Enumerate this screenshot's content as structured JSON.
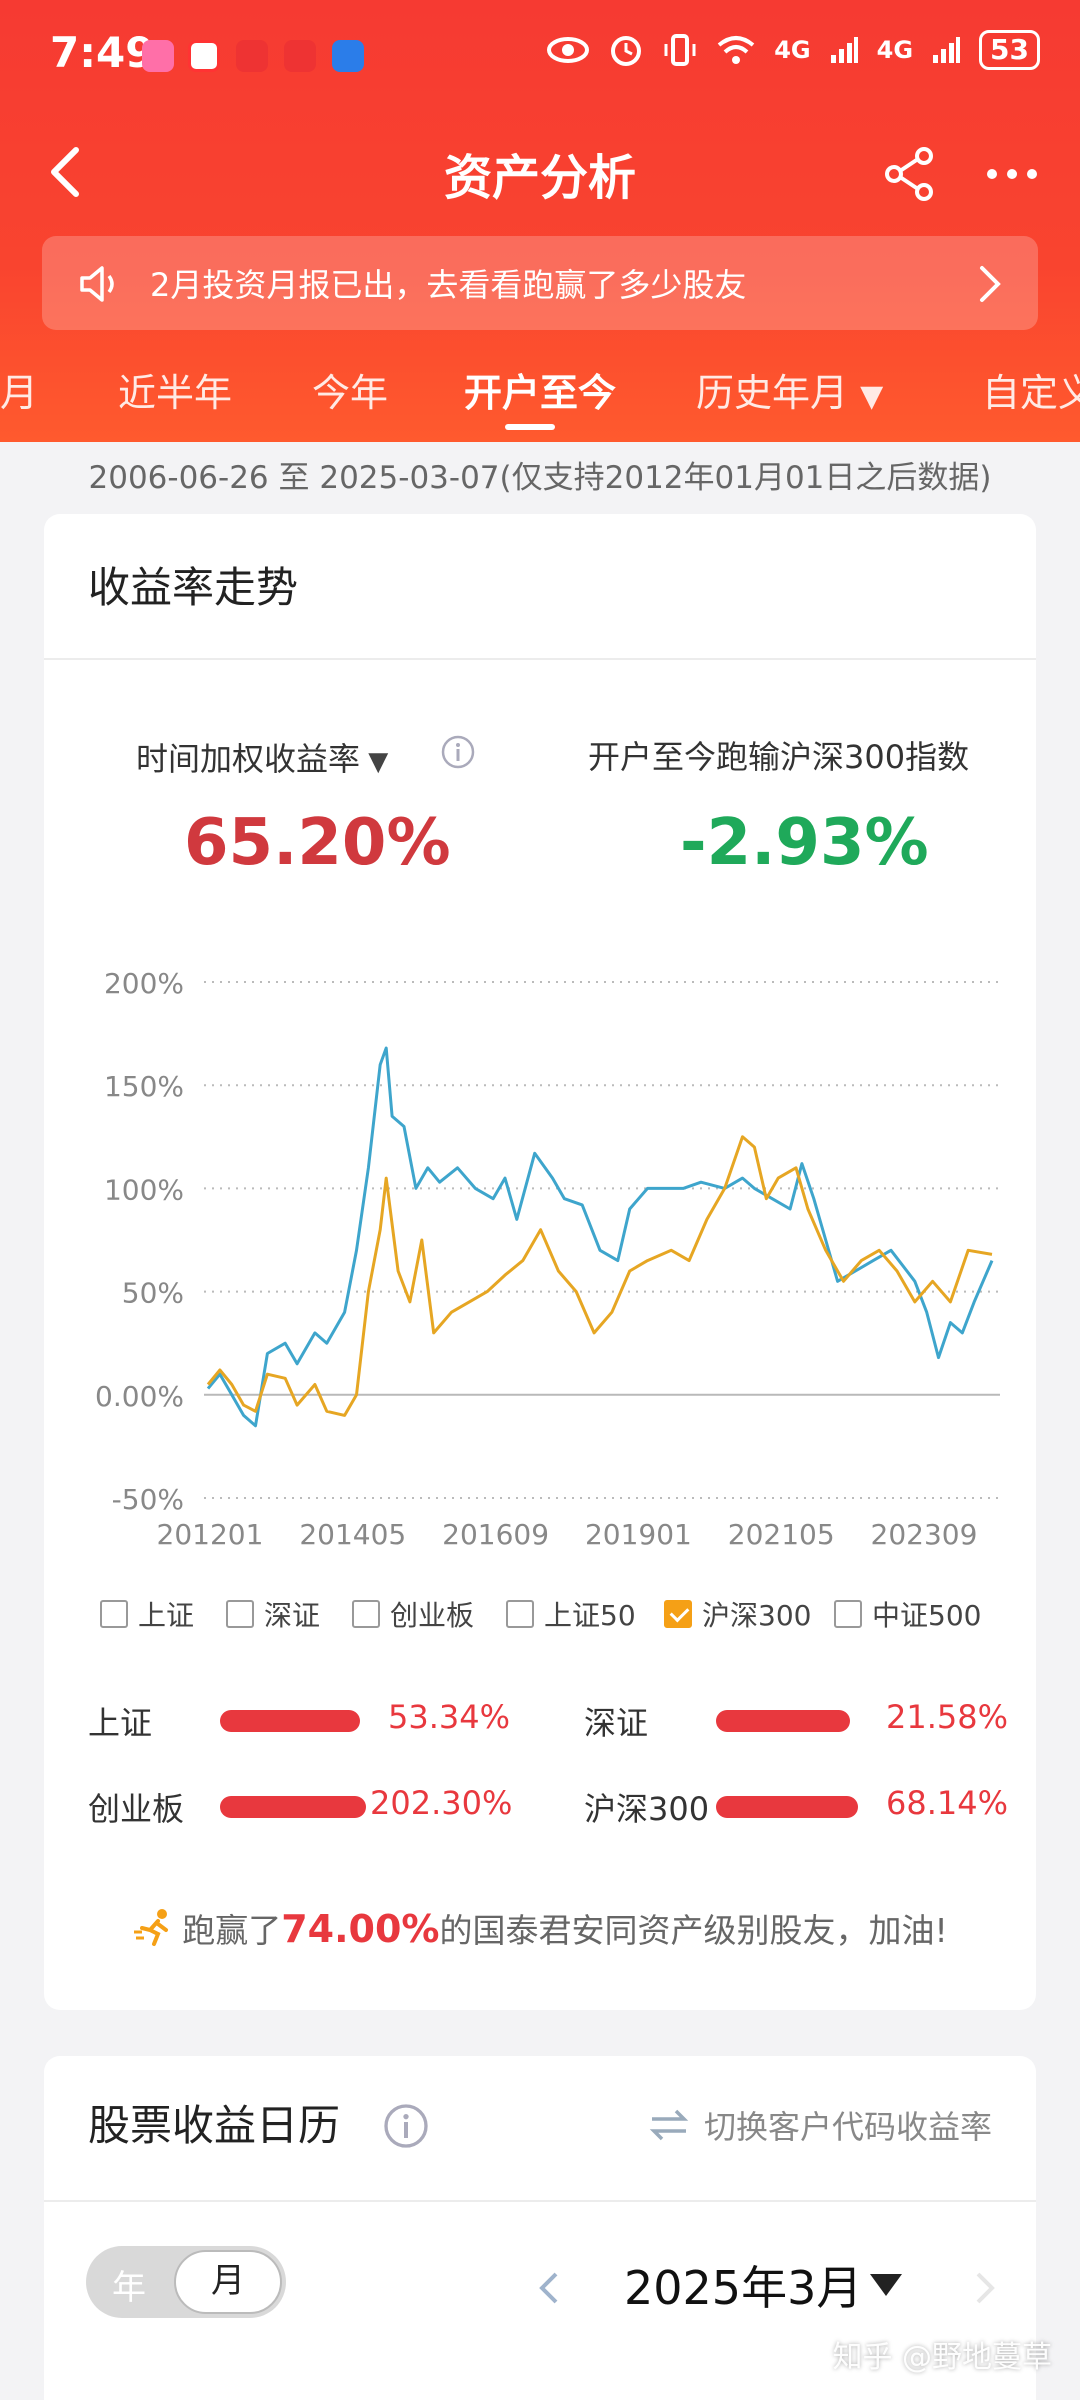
{
  "status_bar": {
    "time": "7:49",
    "battery": "53",
    "network": "4G"
  },
  "header": {
    "title": "资产分析"
  },
  "notice": {
    "text": "2月投资月报已出，去看看跑赢了多少股友"
  },
  "tabs": [
    "三月",
    "近半年",
    "今年",
    "开户至今",
    "历史年月",
    "自定义"
  ],
  "active_tab": "开户至今",
  "date_range": "2006-06-26 至 2025-03-07(仅支持2012年01月01日之后数据)",
  "returns_card": {
    "title": "收益率走势",
    "metric_left_label": "时间加权收益率",
    "metric_left_value": "65.20%",
    "metric_right_label": "开户至今跑输沪深300指数",
    "metric_right_value": "-2.93%"
  },
  "chart_data": {
    "type": "line",
    "y_tick_labels": [
      "200%",
      "150%",
      "100%",
      "50%",
      "0.00%",
      "-50%"
    ],
    "y_ticks": [
      200,
      150,
      100,
      50,
      0,
      -50
    ],
    "ylim": [
      -50,
      200
    ],
    "x_tick_labels": [
      "201201",
      "201405",
      "201609",
      "201901",
      "202105",
      "202309"
    ],
    "xlim": [
      2012.0,
      2025.2
    ],
    "grid": true,
    "colors": {
      "account": "#3ea5cc",
      "benchmark": "#e6a623"
    },
    "series": [
      {
        "points": [
          [
            2012.0,
            3
          ],
          [
            2012.2,
            10
          ],
          [
            2012.4,
            0
          ],
          [
            2012.6,
            -10
          ],
          [
            2012.8,
            -15
          ],
          [
            2013.0,
            20
          ],
          [
            2013.3,
            25
          ],
          [
            2013.5,
            15
          ],
          [
            2013.8,
            30
          ],
          [
            2014.0,
            25
          ],
          [
            2014.3,
            40
          ],
          [
            2014.5,
            70
          ],
          [
            2014.7,
            110
          ],
          [
            2014.9,
            160
          ],
          [
            2015.0,
            168
          ],
          [
            2015.1,
            135
          ],
          [
            2015.3,
            130
          ],
          [
            2015.5,
            100
          ],
          [
            2015.7,
            110
          ],
          [
            2015.9,
            103
          ],
          [
            2016.2,
            110
          ],
          [
            2016.5,
            100
          ],
          [
            2016.8,
            95
          ],
          [
            2017.0,
            105
          ],
          [
            2017.2,
            85
          ],
          [
            2017.5,
            117
          ],
          [
            2017.8,
            105
          ],
          [
            2018.0,
            95
          ],
          [
            2018.3,
            92
          ],
          [
            2018.6,
            70
          ],
          [
            2018.9,
            65
          ],
          [
            2019.1,
            90
          ],
          [
            2019.4,
            100
          ],
          [
            2019.7,
            100
          ],
          [
            2020.0,
            100
          ],
          [
            2020.3,
            103
          ],
          [
            2020.7,
            100
          ],
          [
            2021.0,
            105
          ],
          [
            2021.2,
            100
          ],
          [
            2021.5,
            95
          ],
          [
            2021.8,
            90
          ],
          [
            2022.0,
            112
          ],
          [
            2022.2,
            95
          ],
          [
            2022.4,
            75
          ],
          [
            2022.6,
            55
          ],
          [
            2022.9,
            60
          ],
          [
            2023.2,
            65
          ],
          [
            2023.5,
            70
          ],
          [
            2023.9,
            55
          ],
          [
            2024.1,
            40
          ],
          [
            2024.3,
            18
          ],
          [
            2024.5,
            35
          ],
          [
            2024.7,
            30
          ],
          [
            2024.9,
            45
          ],
          [
            2025.2,
            65
          ]
        ]
      },
      {
        "points": [
          [
            2012.0,
            5
          ],
          [
            2012.2,
            12
          ],
          [
            2012.4,
            5
          ],
          [
            2012.6,
            -5
          ],
          [
            2012.8,
            -8
          ],
          [
            2013.0,
            10
          ],
          [
            2013.3,
            8
          ],
          [
            2013.5,
            -5
          ],
          [
            2013.8,
            5
          ],
          [
            2014.0,
            -8
          ],
          [
            2014.3,
            -10
          ],
          [
            2014.5,
            0
          ],
          [
            2014.7,
            50
          ],
          [
            2014.9,
            80
          ],
          [
            2015.0,
            105
          ],
          [
            2015.2,
            60
          ],
          [
            2015.4,
            45
          ],
          [
            2015.6,
            75
          ],
          [
            2015.8,
            30
          ],
          [
            2016.1,
            40
          ],
          [
            2016.4,
            45
          ],
          [
            2016.7,
            50
          ],
          [
            2017.0,
            58
          ],
          [
            2017.3,
            65
          ],
          [
            2017.6,
            80
          ],
          [
            2017.9,
            60
          ],
          [
            2018.2,
            50
          ],
          [
            2018.5,
            30
          ],
          [
            2018.8,
            40
          ],
          [
            2019.1,
            60
          ],
          [
            2019.4,
            65
          ],
          [
            2019.8,
            70
          ],
          [
            2020.1,
            65
          ],
          [
            2020.4,
            85
          ],
          [
            2020.7,
            100
          ],
          [
            2021.0,
            125
          ],
          [
            2021.2,
            120
          ],
          [
            2021.4,
            95
          ],
          [
            2021.6,
            105
          ],
          [
            2021.9,
            110
          ],
          [
            2022.1,
            90
          ],
          [
            2022.4,
            70
          ],
          [
            2022.7,
            55
          ],
          [
            2023.0,
            65
          ],
          [
            2023.3,
            70
          ],
          [
            2023.6,
            60
          ],
          [
            2023.9,
            45
          ],
          [
            2024.2,
            55
          ],
          [
            2024.5,
            45
          ],
          [
            2024.8,
            70
          ],
          [
            2025.2,
            68
          ]
        ]
      }
    ]
  },
  "legend": [
    {
      "label": "上证",
      "checked": false
    },
    {
      "label": "深证",
      "checked": false
    },
    {
      "label": "创业板",
      "checked": false
    },
    {
      "label": "上证50",
      "checked": false
    },
    {
      "label": "沪深300",
      "checked": true
    },
    {
      "label": "中证500",
      "checked": false
    }
  ],
  "index_compare": [
    {
      "name": "上证",
      "value": "53.34%",
      "fill": 53.34
    },
    {
      "name": "深证",
      "value": "21.58%",
      "fill": 21.58
    },
    {
      "name": "创业板",
      "value": "202.30%",
      "fill": 202.3
    },
    {
      "name": "沪深300",
      "value": "68.14%",
      "fill": 68.14
    }
  ],
  "beat_text": {
    "prefix": "跑赢了",
    "percent": "74.00%",
    "suffix": "的国泰君安同资产级别股友，加油!"
  },
  "calendar_card": {
    "title": "股票收益日历",
    "switch_label": "切换客户代码收益率",
    "seg_year": "年",
    "seg_month": "月",
    "month_label": "2025年3月"
  },
  "watermark": "知乎 @野地蔓草"
}
